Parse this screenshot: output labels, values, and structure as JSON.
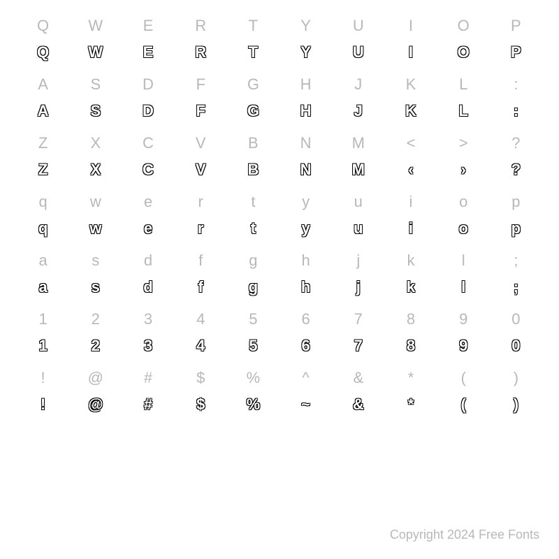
{
  "grid": {
    "rows": [
      {
        "labels": [
          "Q",
          "W",
          "E",
          "R",
          "T",
          "Y",
          "U",
          "I",
          "O",
          "P"
        ],
        "glyphs": [
          "Q",
          "W",
          "E",
          "R",
          "T",
          "Y",
          "U",
          "I",
          "O",
          "P"
        ]
      },
      {
        "labels": [
          "A",
          "S",
          "D",
          "F",
          "G",
          "H",
          "J",
          "K",
          "L",
          ":"
        ],
        "glyphs": [
          "A",
          "S",
          "D",
          "F",
          "G",
          "H",
          "J",
          "K",
          "L",
          ":"
        ]
      },
      {
        "labels": [
          "Z",
          "X",
          "C",
          "V",
          "B",
          "N",
          "M",
          "<",
          ">",
          "?"
        ],
        "glyphs": [
          "Z",
          "X",
          "C",
          "V",
          "B",
          "N",
          "M",
          "‹",
          "›",
          "?"
        ]
      },
      {
        "labels": [
          "q",
          "w",
          "e",
          "r",
          "t",
          "y",
          "u",
          "i",
          "o",
          "p"
        ],
        "glyphs": [
          "q",
          "w",
          "e",
          "r",
          "t",
          "y",
          "u",
          "i",
          "o",
          "p"
        ]
      },
      {
        "labels": [
          "a",
          "s",
          "d",
          "f",
          "g",
          "h",
          "j",
          "k",
          "l",
          ";"
        ],
        "glyphs": [
          "a",
          "s",
          "d",
          "f",
          "g",
          "h",
          "j",
          "k",
          "l",
          ";"
        ]
      },
      {
        "labels": [
          "1",
          "2",
          "3",
          "4",
          "5",
          "6",
          "7",
          "8",
          "9",
          "0"
        ],
        "glyphs": [
          "1",
          "2",
          "3",
          "4",
          "5",
          "6",
          "7",
          "8",
          "9",
          "0"
        ]
      },
      {
        "labels": [
          "!",
          "@",
          "#",
          "$",
          "%",
          "^",
          "&",
          "*",
          "(",
          ")"
        ],
        "glyphs": [
          "!",
          "@",
          "#",
          "$",
          "%",
          "~",
          "&",
          "*",
          "(",
          ")"
        ]
      }
    ]
  },
  "styling": {
    "label_color": "#b8b8b8",
    "glyph_outline_color": "#000000",
    "glyph_fill_color": "#ffffff",
    "background_color": "#ffffff",
    "label_fontsize": 22,
    "glyph_fontsize": 22,
    "columns": 10
  },
  "footer": {
    "copyright": "Copyright 2024 Free Fonts"
  }
}
